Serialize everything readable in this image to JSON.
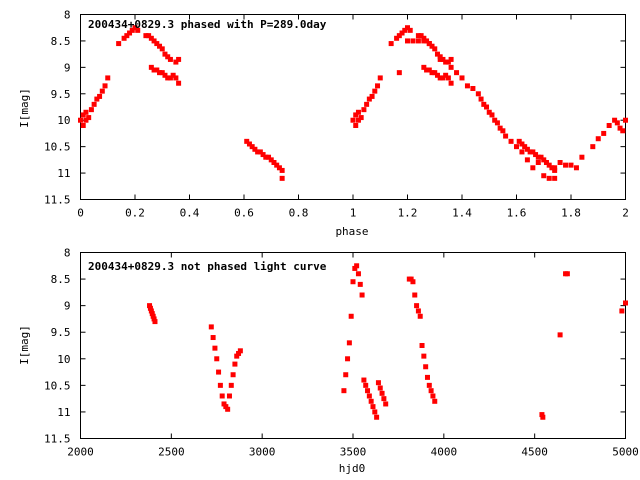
{
  "colors": {
    "points": "#ff0000",
    "axis": "#000000",
    "background": "#ffffff"
  },
  "chart_data": [
    {
      "type": "scatter",
      "title": "200434+0829.3 phased with P=289.0day",
      "xlabel": "phase",
      "ylabel": "I[mag]",
      "xlim": [
        0,
        2
      ],
      "ylim": [
        8,
        11.5
      ],
      "y_inverted": true,
      "grid": false,
      "x_ticks": [
        "0",
        "0.2",
        "0.4",
        "0.6",
        "0.8",
        "1",
        "1.2",
        "1.4",
        "1.6",
        "1.8",
        "2"
      ],
      "y_ticks": [
        "8",
        "8.5",
        "9",
        "9.5",
        "10",
        "10.5",
        "11",
        "11.5"
      ],
      "series": [
        {
          "x": [
            0.0,
            0.01,
            0.01,
            0.02,
            0.02,
            0.03,
            0.04,
            0.05,
            0.06,
            0.07,
            0.08,
            0.09,
            0.1,
            0.14,
            0.16,
            0.17,
            0.18,
            0.19,
            0.2,
            0.21,
            0.24,
            0.25,
            0.26,
            0.27,
            0.28,
            0.29,
            0.3,
            0.31,
            0.32,
            0.33,
            0.35,
            0.36,
            0.26,
            0.27,
            0.28,
            0.29,
            0.3,
            0.31,
            0.32,
            0.33,
            0.34,
            0.35,
            0.36,
            0.61,
            0.62,
            0.63,
            0.64,
            0.65,
            0.66,
            0.67,
            0.68,
            0.69,
            0.7,
            0.71,
            0.72,
            0.73,
            0.74,
            0.74,
            1.0,
            1.01,
            1.01,
            1.02,
            1.02,
            1.03,
            1.04,
            1.05,
            1.06,
            1.07,
            1.08,
            1.09,
            1.1,
            1.14,
            1.16,
            1.17,
            1.18,
            1.19,
            1.2,
            1.21,
            1.24,
            1.25,
            1.26,
            1.27,
            1.28,
            1.29,
            1.3,
            1.31,
            1.32,
            1.33,
            1.35,
            1.36,
            1.26,
            1.27,
            1.28,
            1.29,
            1.3,
            1.31,
            1.32,
            1.33,
            1.34,
            1.35,
            1.36,
            1.61,
            1.62,
            1.63,
            1.64,
            1.65,
            1.66,
            1.67,
            1.68,
            1.69,
            1.7,
            1.71,
            1.72,
            1.73,
            1.74,
            1.74,
            1.17,
            1.2,
            1.22,
            1.24,
            1.26,
            1.28,
            1.32,
            1.34,
            1.36,
            1.38,
            1.4,
            1.42,
            1.44,
            1.46,
            1.47,
            1.48,
            1.49,
            1.5,
            1.51,
            1.52,
            1.53,
            1.54,
            1.55,
            1.56,
            1.58,
            1.6,
            1.62,
            1.64,
            1.66,
            1.68,
            1.7,
            1.72,
            1.74,
            1.76,
            1.78,
            1.8,
            1.82,
            1.84,
            1.88,
            1.9,
            1.92,
            1.94,
            1.96,
            1.97,
            1.98,
            1.99,
            2.0
          ],
          "y": [
            10.0,
            9.9,
            10.1,
            9.85,
            10.0,
            9.95,
            9.8,
            9.7,
            9.6,
            9.55,
            9.45,
            9.35,
            9.2,
            8.55,
            8.45,
            8.4,
            8.35,
            8.3,
            8.25,
            8.3,
            8.4,
            8.4,
            8.45,
            8.5,
            8.55,
            8.6,
            8.65,
            8.75,
            8.8,
            8.85,
            8.9,
            8.85,
            9.0,
            9.05,
            9.05,
            9.1,
            9.1,
            9.15,
            9.2,
            9.2,
            9.15,
            9.2,
            9.3,
            10.4,
            10.45,
            10.5,
            10.55,
            10.6,
            10.6,
            10.65,
            10.7,
            10.7,
            10.75,
            10.8,
            10.85,
            10.9,
            10.95,
            11.1,
            10.0,
            9.9,
            10.1,
            9.85,
            10.0,
            9.95,
            9.8,
            9.7,
            9.6,
            9.55,
            9.45,
            9.35,
            9.2,
            8.55,
            8.45,
            8.4,
            8.35,
            8.3,
            8.25,
            8.3,
            8.4,
            8.4,
            8.45,
            8.5,
            8.55,
            8.6,
            8.65,
            8.75,
            8.8,
            8.85,
            8.9,
            8.85,
            9.0,
            9.05,
            9.05,
            9.1,
            9.1,
            9.15,
            9.2,
            9.2,
            9.15,
            9.2,
            9.3,
            10.4,
            10.45,
            10.5,
            10.55,
            10.6,
            10.6,
            10.65,
            10.7,
            10.7,
            10.75,
            10.8,
            10.85,
            10.9,
            10.95,
            11.1,
            9.1,
            8.5,
            8.5,
            8.5,
            8.5,
            8.55,
            8.85,
            8.9,
            9.0,
            9.1,
            9.2,
            9.35,
            9.4,
            9.5,
            9.6,
            9.7,
            9.75,
            9.85,
            9.9,
            10.0,
            10.05,
            10.15,
            10.2,
            10.3,
            10.4,
            10.5,
            10.6,
            10.75,
            10.9,
            10.8,
            11.05,
            11.1,
            10.9,
            10.8,
            10.85,
            10.85,
            10.9,
            10.7,
            10.5,
            10.35,
            10.25,
            10.1,
            10.0,
            10.05,
            10.15,
            10.2,
            10.0
          ]
        }
      ]
    },
    {
      "type": "scatter",
      "title": "200434+0829.3 not phased light curve",
      "xlabel": "hjd0",
      "ylabel": "I[mag]",
      "xlim": [
        2000,
        5000
      ],
      "ylim": [
        8,
        11.5
      ],
      "y_inverted": true,
      "grid": false,
      "x_ticks": [
        "2000",
        "2500",
        "3000",
        "3500",
        "4000",
        "4500",
        "5000"
      ],
      "y_ticks": [
        "8",
        "8.5",
        "9",
        "9.5",
        "10",
        "10.5",
        "11",
        "11.5"
      ],
      "series": [
        {
          "x": [
            2380,
            2385,
            2390,
            2395,
            2400,
            2405,
            2410,
            2720,
            2730,
            2740,
            2750,
            2760,
            2770,
            2780,
            2790,
            2800,
            2810,
            2820,
            2830,
            2840,
            2850,
            2860,
            2870,
            2880,
            3450,
            3460,
            3470,
            3480,
            3490,
            3500,
            3510,
            3520,
            3530,
            3540,
            3550,
            3560,
            3570,
            3580,
            3590,
            3600,
            3610,
            3620,
            3630,
            3640,
            3650,
            3660,
            3670,
            3680,
            3810,
            3820,
            3830,
            3840,
            3850,
            3860,
            3870,
            3880,
            3890,
            3900,
            3910,
            3920,
            3930,
            3940,
            3950,
            4540,
            4545,
            4640,
            4670,
            4680,
            4980,
            5000
          ],
          "y": [
            9.0,
            9.05,
            9.1,
            9.15,
            9.2,
            9.25,
            9.3,
            9.4,
            9.6,
            9.8,
            10.0,
            10.25,
            10.5,
            10.7,
            10.85,
            10.9,
            10.95,
            10.7,
            10.5,
            10.3,
            10.1,
            9.95,
            9.9,
            9.85,
            10.6,
            10.3,
            10.0,
            9.7,
            9.2,
            8.55,
            8.3,
            8.25,
            8.4,
            8.6,
            8.8,
            10.4,
            10.5,
            10.6,
            10.7,
            10.8,
            10.9,
            11.0,
            11.1,
            10.45,
            10.55,
            10.65,
            10.75,
            10.85,
            8.5,
            8.5,
            8.55,
            8.8,
            9.0,
            9.1,
            9.2,
            9.75,
            9.95,
            10.15,
            10.35,
            10.5,
            10.6,
            10.7,
            10.8,
            11.05,
            11.1,
            9.55,
            8.4,
            8.4,
            9.1,
            8.95
          ]
        }
      ]
    }
  ]
}
